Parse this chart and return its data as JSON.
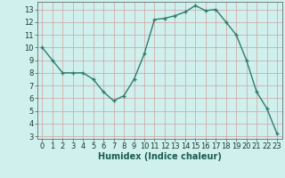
{
  "x": [
    0,
    1,
    2,
    3,
    4,
    5,
    6,
    7,
    8,
    9,
    10,
    11,
    12,
    13,
    14,
    15,
    16,
    17,
    18,
    19,
    20,
    21,
    22,
    23
  ],
  "y": [
    10,
    9,
    8,
    8,
    8,
    7.5,
    6.5,
    5.8,
    6.2,
    7.5,
    9.5,
    12.2,
    12.3,
    12.5,
    12.8,
    13.3,
    12.9,
    13.0,
    12.0,
    11.0,
    9.0,
    6.5,
    5.2,
    3.2
  ],
  "line_color": "#2e7d6e",
  "marker": "+",
  "marker_size": 3,
  "marker_linewidth": 1.0,
  "bg_color": "#cff0ec",
  "grid_color": "#b0d8d4",
  "grid_color_major": "#c8a0a0",
  "xlabel": "Humidex (Indice chaleur)",
  "xlabel_fontsize": 7,
  "tick_fontsize": 6,
  "ylim": [
    2.8,
    13.6
  ],
  "xlim": [
    -0.5,
    23.5
  ],
  "yticks": [
    3,
    4,
    5,
    6,
    7,
    8,
    9,
    10,
    11,
    12,
    13
  ],
  "xticks": [
    0,
    1,
    2,
    3,
    4,
    5,
    6,
    7,
    8,
    9,
    10,
    11,
    12,
    13,
    14,
    15,
    16,
    17,
    18,
    19,
    20,
    21,
    22,
    23
  ],
  "linewidth": 1.0
}
